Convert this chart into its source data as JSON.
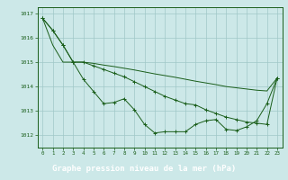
{
  "line1": [
    1016.8,
    1016.3,
    1015.7,
    1015.0,
    1014.3,
    1013.8,
    1013.3,
    1013.35,
    1013.5,
    1013.05,
    1012.45,
    1012.1,
    1012.15,
    1012.15,
    1012.15,
    1012.45,
    1012.6,
    1012.65,
    1012.25,
    1012.2,
    1012.35,
    1012.6,
    1013.3,
    1014.35
  ],
  "line2": [
    1016.8,
    1016.3,
    1015.7,
    1015.0,
    1015.0,
    1014.85,
    1014.7,
    1014.55,
    1014.4,
    1014.2,
    1014.0,
    1013.8,
    1013.6,
    1013.45,
    1013.3,
    1013.25,
    1013.05,
    1012.9,
    1012.75,
    1012.65,
    1012.55,
    1012.5,
    1012.45,
    1014.35
  ],
  "line3": [
    1016.8,
    1015.7,
    1015.0,
    1015.0,
    1015.0,
    1014.95,
    1014.88,
    1014.82,
    1014.75,
    1014.68,
    1014.6,
    1014.52,
    1014.45,
    1014.38,
    1014.3,
    1014.22,
    1014.15,
    1014.08,
    1014.0,
    1013.95,
    1013.9,
    1013.85,
    1013.82,
    1014.35
  ],
  "xvals": [
    0,
    1,
    2,
    3,
    4,
    5,
    6,
    7,
    8,
    9,
    10,
    11,
    12,
    13,
    14,
    15,
    16,
    17,
    18,
    19,
    20,
    21,
    22,
    23
  ],
  "xtick_labels": [
    "0",
    "1",
    "2",
    "3",
    "4",
    "5",
    "6",
    "7",
    "8",
    "9",
    "10",
    "11",
    "12",
    "13",
    "14",
    "15",
    "16",
    "17",
    "18",
    "19",
    "20",
    "21",
    "22",
    "23"
  ],
  "ylim": [
    1011.5,
    1017.25
  ],
  "yticks": [
    1012,
    1013,
    1014,
    1015,
    1016,
    1017
  ],
  "color": "#1a5e1a",
  "bg_color": "#cce8e8",
  "grid_color": "#a0c8c8",
  "xlabel": "Graphe pression niveau de la mer (hPa)",
  "xlabel_bg": "#1a5e1a",
  "xlabel_fg": "#ffffff"
}
